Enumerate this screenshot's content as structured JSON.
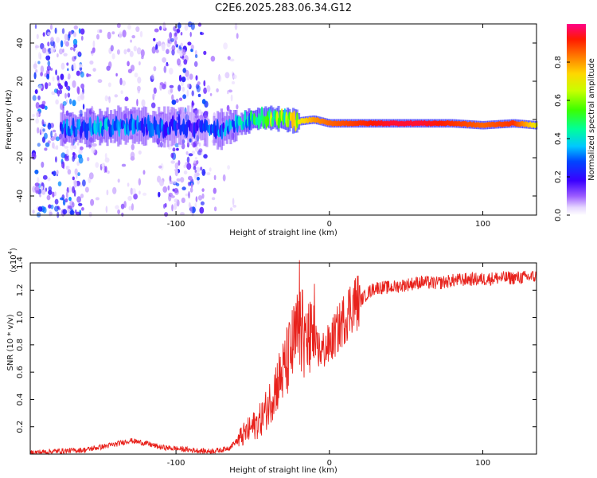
{
  "title": "C2E6.2025.283.06.34.G12",
  "chart_data": [
    {
      "type": "heatmap",
      "name": "spectrogram",
      "xlabel": "Height of straight line (km)",
      "ylabel": "Frequency (Hz)",
      "xlim": [
        -195,
        135
      ],
      "ylim": [
        -50,
        50
      ],
      "x_ticks": [
        -100,
        0,
        100
      ],
      "x_tick_labels": [
        "-100",
        "0",
        "100"
      ],
      "y_ticks": [
        -40,
        -20,
        0,
        20,
        40
      ],
      "y_tick_labels": [
        "-40",
        "-20",
        "0",
        "20",
        "40"
      ],
      "colorbar": {
        "label": "Normalized spectral amplitude",
        "range": [
          0,
          1
        ],
        "ticks": [
          0.0,
          0.2,
          0.4,
          0.6,
          0.8
        ],
        "tick_labels": [
          "0.0",
          "0.2",
          "0.4",
          "0.6",
          "0.8"
        ]
      },
      "ridge": {
        "x": [
          -170,
          -150,
          -130,
          -110,
          -90,
          -75,
          -60,
          -50,
          -40,
          -30,
          -20,
          -10,
          0,
          20,
          40,
          60,
          80,
          100,
          120,
          135
        ],
        "freq": [
          -5,
          -4,
          -3,
          -4,
          -3,
          -6,
          -3,
          0,
          1,
          0,
          -1,
          0,
          -2,
          -2,
          -2,
          -2,
          -2,
          -3,
          -2,
          -3
        ],
        "amplitude": [
          0.3,
          0.35,
          0.3,
          0.3,
          0.2,
          0.3,
          0.35,
          0.5,
          0.55,
          0.6,
          0.7,
          0.8,
          0.85,
          0.9,
          0.95,
          0.95,
          0.9,
          0.85,
          0.9,
          0.7
        ]
      }
    },
    {
      "type": "line",
      "name": "snr",
      "xlabel": "Height of straight line (km)",
      "ylabel": "SNR (10 * v/v)",
      "y_multiplier": "(x10",
      "y_multiplier_exp": "4",
      "y_multiplier_close": ")",
      "xlim": [
        -195,
        135
      ],
      "ylim": [
        0,
        1.4
      ],
      "x_ticks": [
        -100,
        0,
        100
      ],
      "x_tick_labels": [
        "-100",
        "0",
        "100"
      ],
      "y_ticks": [
        0.2,
        0.4,
        0.6,
        0.8,
        1.0,
        1.2,
        1.4
      ],
      "y_tick_labels": [
        "0.2",
        "0.4",
        "0.6",
        "0.8",
        "1.0",
        "1.2",
        "1.4"
      ],
      "color": "#e8221c",
      "series": [
        {
          "name": "SNR",
          "x": [
            -195,
            -180,
            -160,
            -150,
            -140,
            -130,
            -120,
            -110,
            -100,
            -90,
            -80,
            -70,
            -65,
            -60,
            -55,
            -50,
            -45,
            -40,
            -35,
            -30,
            -25,
            -20,
            -15,
            -10,
            -5,
            0,
            5,
            10,
            15,
            20,
            25,
            30,
            40,
            50,
            60,
            70,
            80,
            90,
            100,
            110,
            120,
            135
          ],
          "values": [
            0.01,
            0.02,
            0.03,
            0.05,
            0.07,
            0.1,
            0.08,
            0.05,
            0.04,
            0.03,
            0.02,
            0.03,
            0.05,
            0.1,
            0.15,
            0.2,
            0.25,
            0.35,
            0.5,
            0.6,
            0.75,
            0.9,
            0.85,
            0.8,
            0.75,
            0.8,
            0.9,
            1.0,
            1.1,
            1.12,
            1.18,
            1.22,
            1.22,
            1.24,
            1.26,
            1.25,
            1.27,
            1.28,
            1.28,
            1.29,
            1.29,
            1.3
          ]
        }
      ]
    }
  ]
}
